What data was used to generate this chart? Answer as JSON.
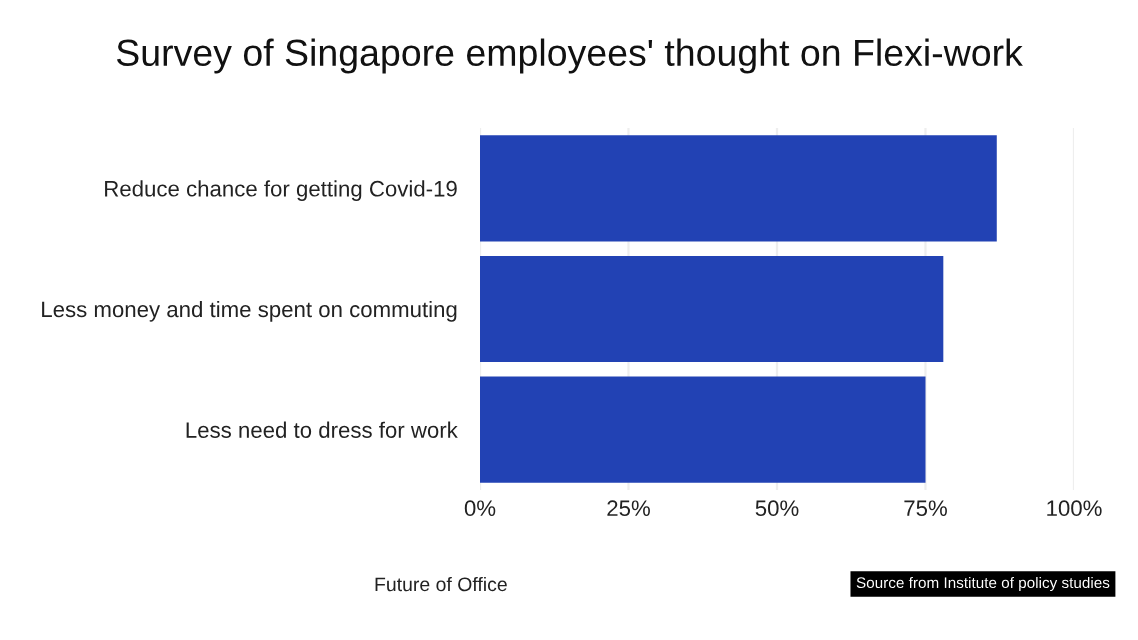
{
  "chart_data": {
    "type": "bar",
    "orientation": "horizontal",
    "title": "Survey of Singapore employees' thought on Flexi-work",
    "categories": [
      "Reduce chance for getting Covid-19",
      "Less money and time spent on commuting",
      "Less need to dress for work"
    ],
    "values": [
      87,
      78,
      75
    ],
    "color": "#2242b4",
    "xlim": [
      0,
      100
    ],
    "xticks": [
      {
        "value": 0,
        "label": "0%"
      },
      {
        "value": 25,
        "label": "25%"
      },
      {
        "value": 50,
        "label": "50%"
      },
      {
        "value": 75,
        "label": "75%"
      },
      {
        "value": 100,
        "label": "100%"
      }
    ],
    "grid": "x",
    "annotations": [
      "Future of Office",
      "Source from Institute of policy studies"
    ]
  }
}
